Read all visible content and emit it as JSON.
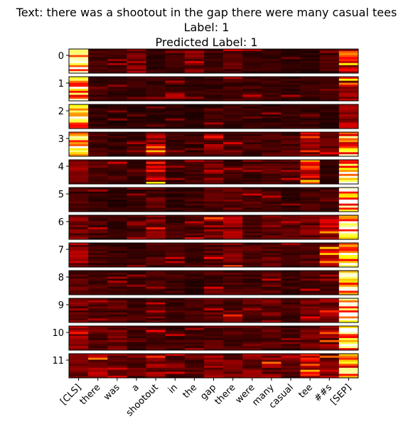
{
  "title": {
    "text_line": "Text: there was a shootout in the gap there were many casual tees",
    "label_line": "Label: 1",
    "predicted_line": "Predicted Label: 1"
  },
  "chart_data": {
    "type": "heatmap",
    "colormap": "hot",
    "layers": [
      "0",
      "1",
      "2",
      "3",
      "4",
      "5",
      "6",
      "7",
      "8",
      "9",
      "10",
      "11"
    ],
    "tokens": [
      "[CLS]",
      "there",
      "was",
      "a",
      "shootout",
      "in",
      "the",
      "gap",
      "there",
      "were",
      "many",
      "casual",
      "tee",
      "##s",
      "[SEP]"
    ],
    "rows_per_layer": 12,
    "layer_intensity": [
      [
        0.92,
        0.1,
        0.1,
        0.22,
        0.08,
        0.1,
        0.2,
        0.1,
        0.14,
        0.08,
        0.08,
        0.06,
        0.06,
        0.1,
        0.4
      ],
      [
        0.88,
        0.1,
        0.08,
        0.08,
        0.08,
        0.1,
        0.08,
        0.08,
        0.1,
        0.1,
        0.08,
        0.08,
        0.08,
        0.08,
        0.35
      ],
      [
        0.95,
        0.08,
        0.06,
        0.06,
        0.06,
        0.06,
        0.06,
        0.08,
        0.08,
        0.08,
        0.08,
        0.08,
        0.08,
        0.08,
        0.25
      ],
      [
        0.8,
        0.1,
        0.08,
        0.1,
        0.3,
        0.08,
        0.08,
        0.2,
        0.12,
        0.1,
        0.12,
        0.12,
        0.22,
        0.15,
        0.75
      ],
      [
        0.2,
        0.12,
        0.1,
        0.08,
        0.35,
        0.08,
        0.1,
        0.18,
        0.1,
        0.1,
        0.12,
        0.12,
        0.35,
        0.08,
        0.95
      ],
      [
        0.12,
        0.08,
        0.06,
        0.08,
        0.14,
        0.08,
        0.1,
        0.14,
        0.16,
        0.12,
        0.1,
        0.08,
        0.12,
        0.1,
        0.92
      ],
      [
        0.2,
        0.12,
        0.08,
        0.1,
        0.18,
        0.1,
        0.12,
        0.22,
        0.25,
        0.14,
        0.18,
        0.12,
        0.18,
        0.28,
        0.9
      ],
      [
        0.25,
        0.1,
        0.08,
        0.08,
        0.12,
        0.1,
        0.1,
        0.14,
        0.18,
        0.12,
        0.14,
        0.1,
        0.14,
        0.3,
        0.95
      ],
      [
        0.14,
        0.12,
        0.1,
        0.08,
        0.1,
        0.1,
        0.08,
        0.12,
        0.12,
        0.1,
        0.14,
        0.1,
        0.14,
        0.12,
        0.92
      ],
      [
        0.18,
        0.14,
        0.14,
        0.1,
        0.12,
        0.1,
        0.1,
        0.14,
        0.16,
        0.14,
        0.18,
        0.1,
        0.16,
        0.22,
        0.92
      ],
      [
        0.22,
        0.16,
        0.18,
        0.12,
        0.14,
        0.1,
        0.1,
        0.14,
        0.14,
        0.16,
        0.14,
        0.12,
        0.16,
        0.22,
        0.92
      ],
      [
        0.2,
        0.24,
        0.24,
        0.16,
        0.22,
        0.12,
        0.14,
        0.22,
        0.18,
        0.2,
        0.22,
        0.16,
        0.35,
        0.25,
        0.8
      ]
    ],
    "xlabel": "",
    "ylabel": ""
  }
}
